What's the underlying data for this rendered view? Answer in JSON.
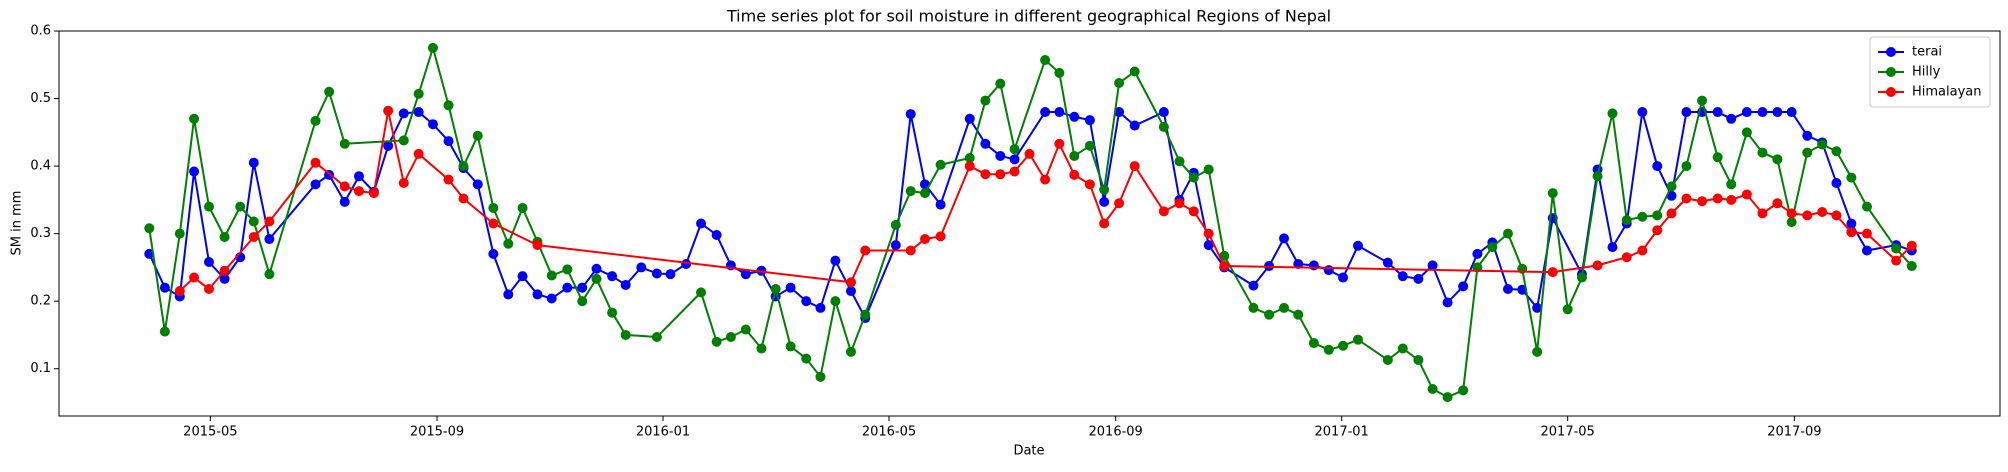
{
  "chart_data": {
    "type": "line",
    "title": "Time series plot for soil moisture in different geographical Regions of Nepal",
    "x_label": "Date",
    "y_label": "SM in mm",
    "xlim": [
      2015.11,
      2017.97
    ],
    "ylim": [
      0.03,
      0.6
    ],
    "xticks": [
      {
        "value": 2015.333,
        "label": "2015-05"
      },
      {
        "value": 2015.667,
        "label": "2015-09"
      },
      {
        "value": 2016.0,
        "label": "2016-01"
      },
      {
        "value": 2016.333,
        "label": "2016-05"
      },
      {
        "value": 2016.667,
        "label": "2016-09"
      },
      {
        "value": 2017.0,
        "label": "2017-01"
      },
      {
        "value": 2017.333,
        "label": "2017-05"
      },
      {
        "value": 2017.667,
        "label": "2017-09"
      }
    ],
    "yticks": [
      0.1,
      0.2,
      0.3,
      0.4,
      0.5,
      0.6
    ],
    "grid": false,
    "legend": "upper right",
    "series": [
      {
        "name": "terai",
        "color": "#0000ff",
        "x": [
          2015.243,
          2015.266,
          2015.288,
          2015.309,
          2015.331,
          2015.354,
          2015.377,
          2015.397,
          2015.42,
          2015.488,
          2015.508,
          2015.531,
          2015.552,
          2015.574,
          2015.595,
          2015.618,
          2015.64,
          2015.661,
          2015.684,
          2015.706,
          2015.727,
          2015.75,
          2015.772,
          2015.793,
          2015.815,
          2015.836,
          2015.859,
          2015.881,
          2015.902,
          2015.925,
          2015.945,
          2015.968,
          2015.991,
          2016.011,
          2016.034,
          2016.056,
          2016.079,
          2016.1,
          2016.122,
          2016.145,
          2016.166,
          2016.188,
          2016.211,
          2016.232,
          2016.254,
          2016.277,
          2016.298,
          2016.343,
          2016.365,
          2016.386,
          2016.409,
          2016.452,
          2016.475,
          2016.497,
          2016.518,
          2016.563,
          2016.584,
          2016.606,
          2016.629,
          2016.65,
          2016.672,
          2016.695,
          2016.738,
          2016.761,
          2016.782,
          2016.804,
          2016.827,
          2016.87,
          2016.893,
          2016.915,
          2016.936,
          2016.959,
          2016.981,
          2017.002,
          2017.024,
          2017.068,
          2017.09,
          2017.113,
          2017.134,
          2017.156,
          2017.179,
          2017.2,
          2017.222,
          2017.245,
          2017.266,
          2017.288,
          2017.311,
          2017.354,
          2017.377,
          2017.399,
          2017.42,
          2017.443,
          2017.465,
          2017.486,
          2017.508,
          2017.531,
          2017.554,
          2017.574,
          2017.597,
          2017.62,
          2017.642,
          2017.663,
          2017.686,
          2017.708,
          2017.729,
          2017.751,
          2017.774,
          2017.817,
          2017.84
        ],
        "values": [
          0.27,
          0.22,
          0.207,
          0.392,
          0.258,
          0.233,
          0.265,
          0.405,
          0.292,
          0.373,
          0.387,
          0.347,
          0.385,
          0.362,
          0.43,
          0.478,
          0.48,
          0.462,
          0.437,
          0.397,
          0.373,
          0.27,
          0.21,
          0.237,
          0.21,
          0.204,
          0.22,
          0.22,
          0.248,
          0.237,
          0.224,
          0.25,
          0.241,
          0.24,
          0.255,
          0.315,
          0.298,
          0.253,
          0.24,
          0.245,
          0.207,
          0.22,
          0.2,
          0.19,
          0.26,
          0.215,
          0.175,
          0.283,
          0.477,
          0.373,
          0.343,
          0.47,
          0.433,
          0.415,
          0.41,
          0.48,
          0.48,
          0.473,
          0.468,
          0.347,
          0.48,
          0.46,
          0.48,
          0.35,
          0.39,
          0.283,
          0.25,
          0.223,
          0.252,
          0.293,
          0.255,
          0.253,
          0.246,
          0.235,
          0.282,
          0.257,
          0.237,
          0.233,
          0.253,
          0.198,
          0.222,
          0.27,
          0.287,
          0.218,
          0.217,
          0.19,
          0.323,
          0.24,
          0.395,
          0.28,
          0.315,
          0.48,
          0.4,
          0.356,
          0.48,
          0.48,
          0.48,
          0.47,
          0.48,
          0.48,
          0.48,
          0.48,
          0.445,
          0.435,
          0.375,
          0.315,
          0.275,
          0.283,
          0.275
        ]
      },
      {
        "name": "Hilly",
        "color": "#008000",
        "x": [
          2015.243,
          2015.266,
          2015.288,
          2015.309,
          2015.331,
          2015.354,
          2015.377,
          2015.397,
          2015.42,
          2015.488,
          2015.508,
          2015.531,
          2015.618,
          2015.64,
          2015.661,
          2015.684,
          2015.706,
          2015.727,
          2015.75,
          2015.772,
          2015.793,
          2015.815,
          2015.836,
          2015.859,
          2015.881,
          2015.902,
          2015.925,
          2015.945,
          2015.991,
          2016.056,
          2016.079,
          2016.1,
          2016.122,
          2016.145,
          2016.166,
          2016.188,
          2016.211,
          2016.232,
          2016.254,
          2016.277,
          2016.298,
          2016.343,
          2016.365,
          2016.386,
          2016.409,
          2016.452,
          2016.475,
          2016.497,
          2016.518,
          2016.563,
          2016.584,
          2016.606,
          2016.629,
          2016.65,
          2016.672,
          2016.695,
          2016.738,
          2016.761,
          2016.782,
          2016.804,
          2016.827,
          2016.87,
          2016.893,
          2016.915,
          2016.936,
          2016.959,
          2016.981,
          2017.002,
          2017.024,
          2017.068,
          2017.09,
          2017.113,
          2017.134,
          2017.156,
          2017.179,
          2017.2,
          2017.222,
          2017.245,
          2017.266,
          2017.288,
          2017.311,
          2017.333,
          2017.354,
          2017.377,
          2017.399,
          2017.42,
          2017.443,
          2017.465,
          2017.486,
          2017.508,
          2017.531,
          2017.554,
          2017.574,
          2017.597,
          2017.62,
          2017.642,
          2017.663,
          2017.686,
          2017.708,
          2017.729,
          2017.751,
          2017.774,
          2017.817,
          2017.84
        ],
        "values": [
          0.308,
          0.155,
          0.3,
          0.47,
          0.34,
          0.295,
          0.34,
          0.318,
          0.24,
          0.467,
          0.51,
          0.433,
          0.438,
          0.507,
          0.575,
          0.49,
          0.4,
          0.445,
          0.338,
          0.285,
          0.338,
          0.288,
          0.238,
          0.247,
          0.2,
          0.233,
          0.183,
          0.15,
          0.147,
          0.213,
          0.14,
          0.147,
          0.158,
          0.13,
          0.218,
          0.133,
          0.115,
          0.088,
          0.2,
          0.125,
          0.18,
          0.313,
          0.363,
          0.36,
          0.402,
          0.412,
          0.497,
          0.522,
          0.425,
          0.557,
          0.538,
          0.415,
          0.43,
          0.365,
          0.523,
          0.54,
          0.458,
          0.407,
          0.383,
          0.395,
          0.267,
          0.19,
          0.18,
          0.19,
          0.18,
          0.138,
          0.128,
          0.134,
          0.143,
          0.113,
          0.13,
          0.113,
          0.07,
          0.058,
          0.068,
          0.25,
          0.28,
          0.3,
          0.248,
          0.125,
          0.36,
          0.188,
          0.235,
          0.385,
          0.478,
          0.32,
          0.325,
          0.327,
          0.37,
          0.4,
          0.497,
          0.413,
          0.373,
          0.45,
          0.42,
          0.41,
          0.317,
          0.42,
          0.432,
          0.422,
          0.383,
          0.34,
          0.278,
          0.252
        ]
      },
      {
        "name": "Himalayan",
        "color": "#ff0000",
        "x": [
          2015.288,
          2015.309,
          2015.331,
          2015.354,
          2015.397,
          2015.42,
          2015.488,
          2015.531,
          2015.552,
          2015.574,
          2015.595,
          2015.618,
          2015.64,
          2015.684,
          2015.706,
          2015.75,
          2015.815,
          2016.277,
          2016.298,
          2016.365,
          2016.386,
          2016.409,
          2016.452,
          2016.475,
          2016.497,
          2016.518,
          2016.54,
          2016.563,
          2016.584,
          2016.606,
          2016.629,
          2016.65,
          2016.672,
          2016.695,
          2016.738,
          2016.761,
          2016.782,
          2016.804,
          2016.827,
          2017.311,
          2017.377,
          2017.42,
          2017.443,
          2017.465,
          2017.486,
          2017.508,
          2017.531,
          2017.554,
          2017.574,
          2017.597,
          2017.62,
          2017.642,
          2017.663,
          2017.686,
          2017.708,
          2017.729,
          2017.751,
          2017.774,
          2017.817,
          2017.84
        ],
        "values": [
          0.215,
          0.235,
          0.218,
          0.245,
          0.295,
          0.318,
          0.405,
          0.37,
          0.363,
          0.36,
          0.482,
          0.375,
          0.418,
          0.38,
          0.352,
          0.315,
          0.283,
          0.228,
          0.275,
          0.275,
          0.292,
          0.296,
          0.4,
          0.388,
          0.388,
          0.392,
          0.418,
          0.38,
          0.433,
          0.387,
          0.373,
          0.315,
          0.345,
          0.4,
          0.333,
          0.345,
          0.333,
          0.3,
          0.252,
          0.243,
          0.253,
          0.265,
          0.275,
          0.305,
          0.33,
          0.352,
          0.348,
          0.352,
          0.35,
          0.358,
          0.33,
          0.345,
          0.33,
          0.327,
          0.332,
          0.327,
          0.302,
          0.3,
          0.26,
          0.282
        ]
      }
    ]
  }
}
